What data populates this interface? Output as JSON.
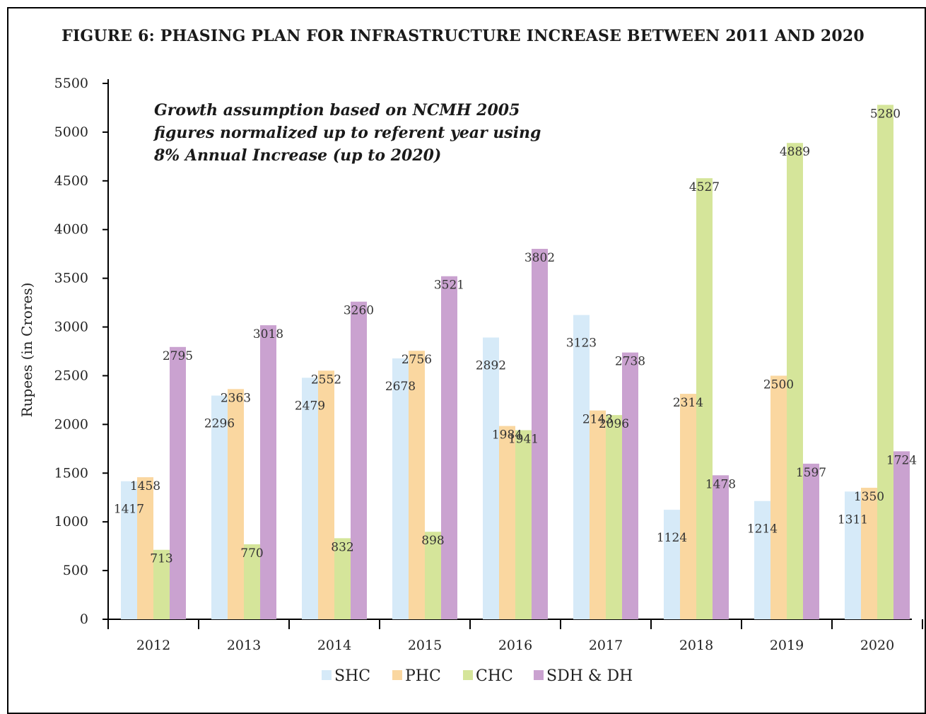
{
  "chart_data": {
    "type": "bar",
    "title": "FIGURE 6: PHASING PLAN FOR INFRASTRUCTURE INCREASE BETWEEN 2011 AND 2020",
    "annotation": [
      "Growth assumption based on NCMH 2005",
      "figures normalized up to referent year using",
      "8% Annual Increase (up to 2020)"
    ],
    "xlabel": "",
    "ylabel": "Rupees (in Crores)",
    "ylim": [
      0,
      5500
    ],
    "yticks": [
      0,
      500,
      1000,
      1500,
      2000,
      2500,
      3000,
      3500,
      4000,
      4500,
      5000,
      5500
    ],
    "categories": [
      "2012",
      "2013",
      "2014",
      "2015",
      "2016",
      "2017",
      "2018",
      "2019",
      "2020"
    ],
    "legend_position": "bottom",
    "series": [
      {
        "name": "SHC",
        "color": "#d6eaf8",
        "values": [
          1417,
          2296,
          2479,
          2678,
          2892,
          3123,
          1124,
          1214,
          1311
        ]
      },
      {
        "name": "PHC",
        "color": "#fad7a0",
        "values": [
          1458,
          2363,
          2552,
          2756,
          1984,
          2143,
          2314,
          2500,
          1350
        ]
      },
      {
        "name": "CHC",
        "color": "#d5e59a",
        "values": [
          713,
          770,
          832,
          898,
          1941,
          2096,
          4527,
          4889,
          5280
        ]
      },
      {
        "name": "SDH & DH",
        "color": "#caa2d0",
        "values": [
          2795,
          3018,
          3260,
          3521,
          3802,
          2738,
          1478,
          1597,
          1724
        ]
      }
    ]
  }
}
